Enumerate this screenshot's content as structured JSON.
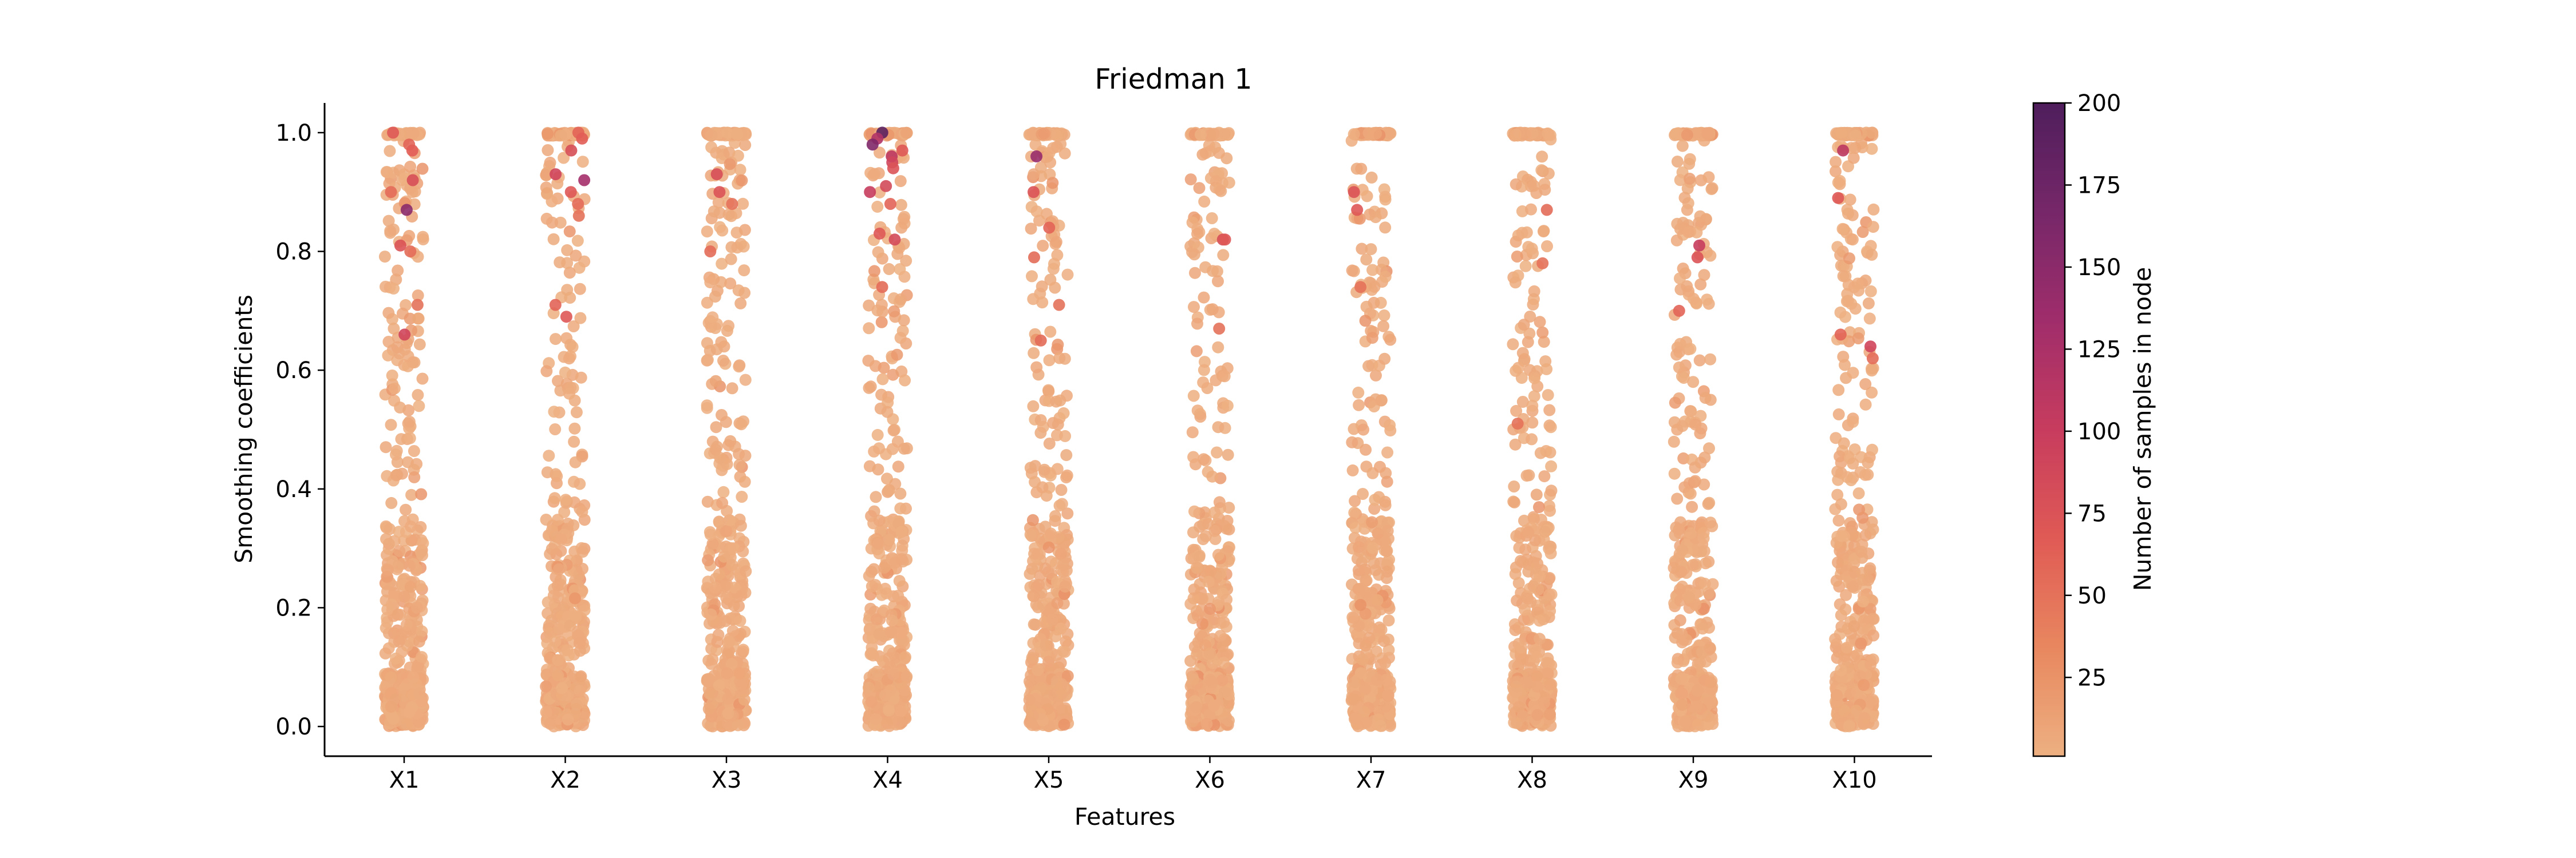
{
  "chart_data": {
    "type": "scatter",
    "subtype": "strip",
    "title": "Friedman 1",
    "xlabel": "Features",
    "ylabel": "Smoothing coefficients",
    "categories": [
      "X1",
      "X2",
      "X3",
      "X4",
      "X5",
      "X6",
      "X7",
      "X8",
      "X9",
      "X10"
    ],
    "ylim": [
      -0.05,
      1.05
    ],
    "yticks": [
      "0.0",
      "0.2",
      "0.4",
      "0.6",
      "0.8",
      "1.0"
    ],
    "grid": false,
    "colorbar": {
      "label": "Number of samples in node",
      "range": [
        1,
        200
      ],
      "ticks": [
        "25",
        "50",
        "75",
        "100",
        "125",
        "150",
        "175",
        "200"
      ],
      "colormap": "flare",
      "colors": [
        "#edb081",
        "#e8875f",
        "#e05a55",
        "#c73c5e",
        "#a02d6b",
        "#762769",
        "#4f1e5c"
      ]
    },
    "series": [
      {
        "category": "X1",
        "points_per_category": 480,
        "distribution": "dense near 0.0, sparser in the middle, band at 1.0",
        "high_count_points": [
          [
            1.0,
            70
          ],
          [
            0.98,
            60
          ],
          [
            0.92,
            80
          ],
          [
            0.9,
            55
          ],
          [
            0.87,
            150
          ],
          [
            0.81,
            75
          ],
          [
            0.8,
            55
          ],
          [
            0.71,
            50
          ],
          [
            0.66,
            90
          ],
          [
            0.97,
            65
          ]
        ]
      },
      {
        "category": "X2",
        "points_per_category": 480,
        "distribution": "dense near 0.0, sparser in the middle, band at 1.0",
        "high_count_points": [
          [
            1.0,
            60
          ],
          [
            0.99,
            65
          ],
          [
            0.97,
            80
          ],
          [
            0.92,
            130
          ],
          [
            0.93,
            90
          ],
          [
            0.9,
            70
          ],
          [
            0.88,
            55
          ],
          [
            0.71,
            60
          ],
          [
            0.69,
            70
          ],
          [
            0.86,
            50
          ]
        ]
      },
      {
        "category": "X3",
        "points_per_category": 480,
        "distribution": "dense near 0.0, sparser in the middle, band at 1.0",
        "high_count_points": [
          [
            0.93,
            80
          ],
          [
            0.9,
            75
          ],
          [
            0.8,
            55
          ],
          [
            0.88,
            50
          ]
        ]
      },
      {
        "category": "X4",
        "points_per_category": 480,
        "distribution": "dense near 0.0, sparser in the middle, band at 1.0",
        "high_count_points": [
          [
            1.0,
            190
          ],
          [
            0.99,
            120
          ],
          [
            0.98,
            160
          ],
          [
            0.96,
            110
          ],
          [
            0.95,
            90
          ],
          [
            0.94,
            75
          ],
          [
            0.91,
            85
          ],
          [
            0.9,
            100
          ],
          [
            0.88,
            60
          ],
          [
            0.83,
            70
          ],
          [
            0.82,
            85
          ],
          [
            0.74,
            55
          ],
          [
            0.97,
            70
          ]
        ]
      },
      {
        "category": "X5",
        "points_per_category": 480,
        "distribution": "dense near 0.0, sparser in the middle, band at 1.0",
        "high_count_points": [
          [
            0.96,
            140
          ],
          [
            0.9,
            75
          ],
          [
            0.84,
            60
          ],
          [
            0.79,
            55
          ],
          [
            0.71,
            50
          ],
          [
            0.65,
            55
          ]
        ]
      },
      {
        "category": "X6",
        "points_per_category": 480,
        "distribution": "dense near 0.0, sparser in the middle, band at 1.0",
        "high_count_points": [
          [
            0.82,
            80
          ],
          [
            0.82,
            70
          ],
          [
            0.67,
            50
          ]
        ]
      },
      {
        "category": "X7",
        "points_per_category": 480,
        "distribution": "dense near 0.0, sparser in the middle, band at 1.0",
        "high_count_points": [
          [
            0.9,
            75
          ],
          [
            0.87,
            70
          ],
          [
            0.74,
            50
          ]
        ]
      },
      {
        "category": "X8",
        "points_per_category": 480,
        "distribution": "dense near 0.0, sparser in the middle, band at 1.0",
        "high_count_points": [
          [
            0.87,
            55
          ],
          [
            0.78,
            50
          ],
          [
            0.51,
            50
          ]
        ]
      },
      {
        "category": "X9",
        "points_per_category": 480,
        "distribution": "dense near 0.0, sparser in the middle, band at 1.0",
        "high_count_points": [
          [
            0.81,
            100
          ],
          [
            0.79,
            75
          ],
          [
            0.7,
            60
          ]
        ]
      },
      {
        "category": "X10",
        "points_per_category": 480,
        "distribution": "dense near 0.0, sparser in the middle, band at 1.0",
        "high_count_points": [
          [
            0.97,
            110
          ],
          [
            0.89,
            70
          ],
          [
            0.64,
            90
          ],
          [
            0.66,
            60
          ],
          [
            0.62,
            55
          ]
        ]
      }
    ]
  }
}
